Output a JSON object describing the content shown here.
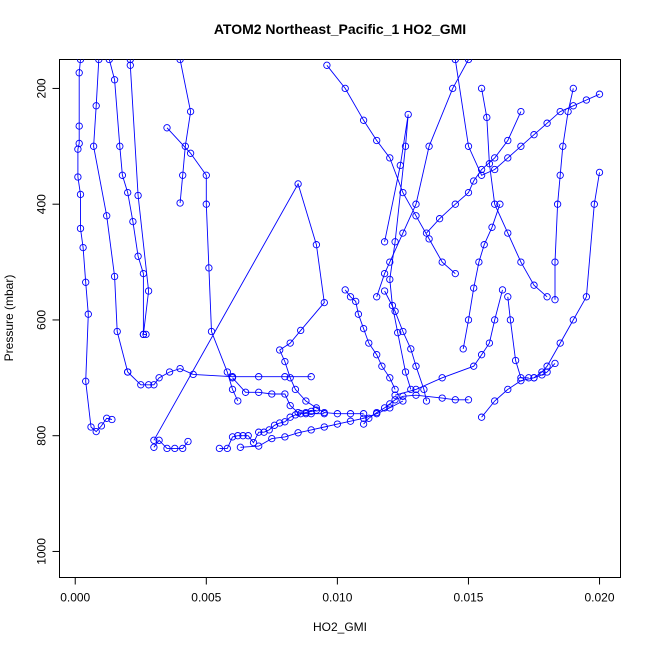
{
  "chart_data": {
    "type": "line",
    "title": "ATOM2 Northeast_Pacific_1 HO2_GMI",
    "xlabel": "HO2_GMI",
    "ylabel": "Pressure (mbar)",
    "xlim": [
      -0.0006,
      0.0208
    ],
    "ylim": [
      1045,
      150
    ],
    "y_reversed": true,
    "x_ticks": [
      0.0,
      0.005,
      0.01,
      0.015,
      0.02
    ],
    "x_tick_labels": [
      "0.000",
      "0.005",
      "0.010",
      "0.015",
      "0.020"
    ],
    "y_ticks": [
      200,
      400,
      600,
      800,
      1000
    ],
    "y_tick_labels": [
      "200",
      "400",
      "600",
      "800",
      "1000"
    ],
    "grid": false,
    "legend": "none",
    "color": "#0000ff",
    "marker": "open-circle",
    "series": [
      {
        "x": [
          0.0002,
          0.00015,
          0.00015,
          0.00015,
          0.0001,
          0.0001,
          0.0002,
          0.0002,
          0.0003,
          0.0004,
          0.0005,
          0.0004,
          0.0006,
          0.0008,
          0.001,
          0.0012,
          0.0014
        ],
        "y": [
          150,
          173,
          265,
          295,
          305,
          353,
          383,
          442,
          475,
          535,
          590,
          706,
          785,
          793,
          783,
          770,
          772
        ]
      },
      {
        "x": [
          0.0013,
          0.0015,
          0.0017,
          0.0018,
          0.002,
          0.0022,
          0.0024,
          0.0026,
          0.0026
        ],
        "y": [
          150,
          185,
          300,
          350,
          380,
          430,
          490,
          520,
          625
        ]
      },
      {
        "x": [
          0.0021,
          0.0021,
          0.0024,
          0.0028,
          0.0026,
          0.0027
        ],
        "y": [
          150,
          160,
          385,
          550,
          625,
          625
        ]
      },
      {
        "x": [
          0.0009,
          0.0008,
          0.0007,
          0.0012,
          0.0015,
          0.0016,
          0.002
        ],
        "y": [
          150,
          230,
          300,
          420,
          525,
          620,
          690
        ]
      },
      {
        "x": [
          0.002,
          0.0025,
          0.0028,
          0.003,
          0.0032,
          0.0036,
          0.004,
          0.0045,
          0.006,
          0.007,
          0.008,
          0.009
        ],
        "y": [
          690,
          712,
          712,
          712,
          700,
          690,
          684,
          694,
          698,
          698,
          698,
          698
        ]
      },
      {
        "x": [
          0.004,
          0.0044,
          0.0042,
          0.0041,
          0.004
        ],
        "y": [
          150,
          240,
          300,
          350,
          398
        ]
      },
      {
        "x": [
          0.0035,
          0.0044,
          0.005,
          0.005,
          0.0051,
          0.0052,
          0.0058,
          0.006,
          0.0062
        ],
        "y": [
          268,
          312,
          350,
          400,
          510,
          620,
          690,
          720,
          740
        ]
      },
      {
        "x": [
          0.003,
          0.0032,
          0.0035,
          0.0038,
          0.0041,
          0.0043
        ],
        "y": [
          820,
          808,
          822,
          822,
          822,
          810
        ]
      },
      {
        "x": [
          0.003,
          0.0085,
          0.0092,
          0.0095,
          0.0086,
          0.0082,
          0.0078,
          0.008,
          0.0082,
          0.0084,
          0.0088,
          0.0092,
          0.0095,
          0.01,
          0.0105,
          0.011
        ],
        "y": [
          808,
          365,
          470,
          570,
          618,
          640,
          652,
          672,
          700,
          720,
          740,
          752,
          760,
          762,
          762,
          762
        ]
      },
      {
        "x": [
          0.0055,
          0.0058,
          0.006,
          0.0062,
          0.0064,
          0.0066,
          0.0068,
          0.007,
          0.0072,
          0.0074,
          0.0076,
          0.0078,
          0.008,
          0.0082,
          0.0084,
          0.0086,
          0.0088,
          0.009,
          0.0092
        ],
        "y": [
          822,
          822,
          802,
          800,
          800,
          800,
          812,
          794,
          794,
          790,
          782,
          778,
          776,
          768,
          764,
          762,
          760,
          758,
          756
        ]
      },
      {
        "x": [
          0.006,
          0.0065,
          0.007,
          0.0075,
          0.008,
          0.0082,
          0.0085,
          0.0088,
          0.009,
          0.0095
        ],
        "y": [
          700,
          725,
          725,
          728,
          728,
          748,
          760,
          762,
          762,
          762
        ]
      },
      {
        "x": [
          0.0063,
          0.007,
          0.0075,
          0.008,
          0.0085,
          0.009,
          0.0095,
          0.01,
          0.0105,
          0.011,
          0.0115,
          0.012,
          0.0125
        ],
        "y": [
          820,
          818,
          805,
          802,
          795,
          790,
          785,
          780,
          775,
          770,
          762,
          752,
          740
        ]
      },
      {
        "x": [
          0.0103,
          0.0105,
          0.0107,
          0.0108,
          0.011,
          0.0112,
          0.0115,
          0.0117,
          0.012,
          0.0122
        ],
        "y": [
          548,
          560,
          568,
          590,
          615,
          640,
          660,
          680,
          700,
          720
        ]
      },
      {
        "x": [
          0.0118,
          0.0124,
          0.0127,
          0.0126,
          0.0122,
          0.012,
          0.0121,
          0.0123,
          0.0126,
          0.0128
        ],
        "y": [
          465,
          333,
          245,
          300,
          465,
          530,
          575,
          622,
          690,
          720
        ]
      },
      {
        "x": [
          0.0096,
          0.0103,
          0.011,
          0.0115,
          0.012,
          0.0125,
          0.013,
          0.0135,
          0.014,
          0.0145
        ],
        "y": [
          160,
          200,
          255,
          290,
          320,
          380,
          420,
          460,
          500,
          520
        ]
      },
      {
        "x": [
          0.015,
          0.0144,
          0.0135,
          0.013,
          0.0125,
          0.012,
          0.0118,
          0.0115
        ],
        "y": [
          150,
          200,
          300,
          400,
          450,
          500,
          520,
          560
        ]
      },
      {
        "x": [
          0.0118,
          0.0122,
          0.0125,
          0.0128,
          0.013,
          0.0133,
          0.0134
        ],
        "y": [
          550,
          585,
          620,
          650,
          680,
          720,
          740
        ]
      },
      {
        "x": [
          0.011,
          0.0112,
          0.0115,
          0.0118,
          0.012,
          0.0122,
          0.0125,
          0.013,
          0.014,
          0.0145,
          0.015
        ],
        "y": [
          780,
          770,
          760,
          752,
          745,
          738,
          732,
          730,
          735,
          738,
          738
        ]
      },
      {
        "x": [
          0.0134,
          0.0139,
          0.0145,
          0.015,
          0.0152,
          0.0155,
          0.016,
          0.0165,
          0.017
        ],
        "y": [
          450,
          425,
          400,
          380,
          360,
          340,
          320,
          290,
          240
        ]
      },
      {
        "x": [
          0.0165,
          0.0166,
          0.0168,
          0.017,
          0.0173
        ],
        "y": [
          560,
          600,
          670,
          700,
          700
        ]
      },
      {
        "x": [
          0.0122,
          0.013,
          0.014,
          0.0152,
          0.0155,
          0.0158,
          0.016,
          0.0163
        ],
        "y": [
          730,
          720,
          700,
          680,
          660,
          640,
          600,
          548
        ]
      },
      {
        "x": [
          0.0148,
          0.015,
          0.0152,
          0.0154,
          0.0156,
          0.0159,
          0.0162
        ],
        "y": [
          650,
          600,
          545,
          500,
          470,
          440,
          400
        ]
      },
      {
        "x": [
          0.0145,
          0.015,
          0.0155,
          0.016,
          0.0165,
          0.017,
          0.0175,
          0.018,
          0.0185,
          0.019,
          0.0195,
          0.02
        ],
        "y": [
          150,
          300,
          350,
          340,
          320,
          300,
          280,
          260,
          240,
          230,
          220,
          210
        ]
      },
      {
        "x": [
          0.0155,
          0.0157,
          0.0158,
          0.016,
          0.0165,
          0.017,
          0.0175,
          0.018
        ],
        "y": [
          200,
          250,
          330,
          400,
          450,
          500,
          540,
          560
        ]
      },
      {
        "x": [
          0.0175,
          0.0178,
          0.018,
          0.0185,
          0.019,
          0.0195,
          0.0198,
          0.02
        ],
        "y": [
          700,
          690,
          680,
          640,
          600,
          560,
          400,
          345
        ]
      },
      {
        "x": [
          0.019,
          0.0188,
          0.0186,
          0.0185,
          0.0184,
          0.0183,
          0.0183
        ],
        "y": [
          200,
          240,
          300,
          350,
          400,
          500,
          565
        ]
      },
      {
        "x": [
          0.0155,
          0.016,
          0.0165,
          0.017,
          0.0175,
          0.0178,
          0.018,
          0.0183
        ],
        "y": [
          768,
          740,
          720,
          705,
          700,
          695,
          690,
          675
        ]
      }
    ]
  }
}
